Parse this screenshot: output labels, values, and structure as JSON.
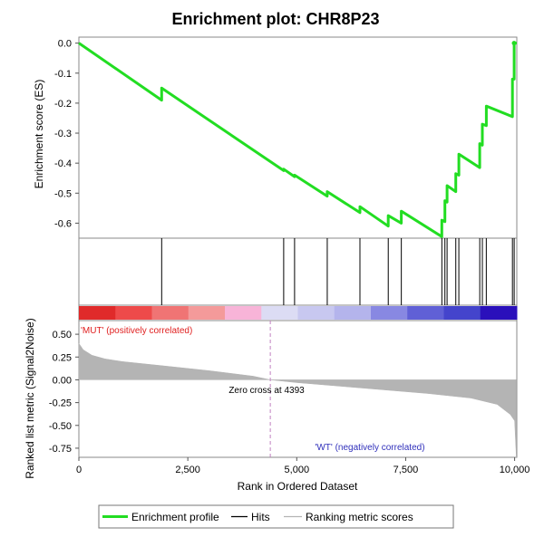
{
  "chart_data": {
    "type": "line",
    "title": "Enrichment plot: CHR8P23",
    "es_panel": {
      "ylabel": "Enrichment score (ES)",
      "ylim": [
        -0.65,
        0.02
      ],
      "yticks": [
        0.0,
        -0.1,
        -0.2,
        -0.3,
        -0.4,
        -0.5,
        -0.6
      ],
      "ytick_labels": [
        "0.0",
        "-0.1",
        "-0.2",
        "-0.3",
        "-0.4",
        "-0.5",
        "-0.6"
      ],
      "series": [
        {
          "name": "Enrichment profile",
          "color": "#22dd22",
          "points": [
            [
              0,
              0.0
            ],
            [
              1900,
              -0.19
            ],
            [
              1900,
              -0.15
            ],
            [
              4700,
              -0.425
            ],
            [
              4700,
              -0.42
            ],
            [
              4950,
              -0.445
            ],
            [
              4950,
              -0.44
            ],
            [
              5700,
              -0.51
            ],
            [
              5700,
              -0.495
            ],
            [
              6450,
              -0.565
            ],
            [
              6450,
              -0.545
            ],
            [
              7100,
              -0.61
            ],
            [
              7100,
              -0.575
            ],
            [
              7400,
              -0.6
            ],
            [
              7400,
              -0.56
            ],
            [
              8330,
              -0.645
            ],
            [
              8330,
              -0.59
            ],
            [
              8400,
              -0.595
            ],
            [
              8400,
              -0.525
            ],
            [
              8450,
              -0.53
            ],
            [
              8450,
              -0.475
            ],
            [
              8650,
              -0.495
            ],
            [
              8650,
              -0.435
            ],
            [
              8720,
              -0.44
            ],
            [
              8720,
              -0.37
            ],
            [
              9200,
              -0.415
            ],
            [
              9200,
              -0.335
            ],
            [
              9260,
              -0.34
            ],
            [
              9260,
              -0.27
            ],
            [
              9350,
              -0.275
            ],
            [
              9350,
              -0.21
            ],
            [
              9950,
              -0.245
            ],
            [
              9950,
              -0.12
            ],
            [
              9990,
              -0.12
            ],
            [
              9990,
              0.0
            ],
            [
              10050,
              0.0
            ]
          ]
        }
      ]
    },
    "hits": [
      1900,
      4700,
      4950,
      5700,
      6450,
      7100,
      7400,
      8330,
      8400,
      8450,
      8650,
      8720,
      9200,
      9260,
      9350,
      9950,
      9990
    ],
    "heatmap_bar": {
      "colors": [
        "#e02a2a",
        "#ee4a4a",
        "#f07474",
        "#f49a9a",
        "#f8b4d8",
        "#dcdcf4",
        "#c8c8f0",
        "#b4b4ec",
        "#8888e2",
        "#6060d6",
        "#4444cc",
        "#2a10bb"
      ]
    },
    "metric_panel": {
      "ylabel": "Ranked list metric (Signal2Noise)",
      "ylim": [
        -0.85,
        0.65
      ],
      "yticks": [
        0.5,
        0.25,
        0.0,
        -0.25,
        -0.5,
        -0.75
      ],
      "ytick_labels": [
        "0.50",
        "0.25",
        "0.00",
        "-0.25",
        "-0.50",
        "-0.75"
      ],
      "series": [
        {
          "name": "Ranking metric scores",
          "color": "#b4b4b4",
          "points": [
            [
              0,
              0.4
            ],
            [
              100,
              0.33
            ],
            [
              300,
              0.27
            ],
            [
              600,
              0.23
            ],
            [
              1000,
              0.2
            ],
            [
              2000,
              0.15
            ],
            [
              3000,
              0.1
            ],
            [
              4000,
              0.04
            ],
            [
              4393,
              0.0
            ],
            [
              5000,
              -0.03
            ],
            [
              6000,
              -0.07
            ],
            [
              7000,
              -0.11
            ],
            [
              8000,
              -0.15
            ],
            [
              9000,
              -0.2
            ],
            [
              9600,
              -0.27
            ],
            [
              9900,
              -0.38
            ],
            [
              10000,
              -0.45
            ],
            [
              10040,
              -0.85
            ]
          ]
        }
      ],
      "zero_cross": 4393,
      "zero_cross_label": "Zero cross at 4393",
      "pos_label": "'MUT' (positively correlated)",
      "neg_label": "'WT' (negatively correlated)",
      "pos_color": "#e02020",
      "neg_color": "#3030bb"
    },
    "x_axis": {
      "xlabel": "Rank in Ordered Dataset",
      "xlim": [
        0,
        10050
      ],
      "xticks": [
        0,
        2500,
        5000,
        7500,
        10000
      ],
      "xtick_labels": [
        "0",
        "2,500",
        "5,000",
        "7,500",
        "10,000"
      ]
    },
    "legend": {
      "placement": "bottom",
      "items": [
        {
          "label": "Enrichment profile",
          "color": "#22dd22",
          "style": "thick"
        },
        {
          "label": "Hits",
          "color": "#000000",
          "style": "line"
        },
        {
          "label": "Ranking metric scores",
          "color": "#b4b4b4",
          "style": "line"
        }
      ]
    }
  }
}
